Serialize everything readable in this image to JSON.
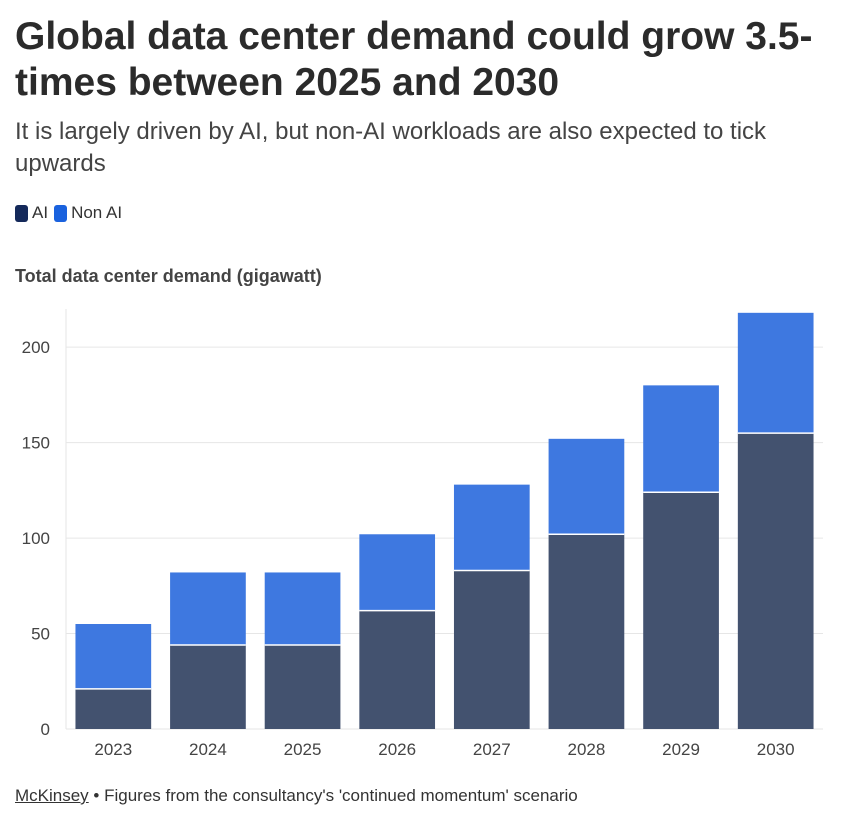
{
  "header": {
    "title": "Global data center demand could grow 3.5-times between 2025 and 2030",
    "subtitle": "It is largely driven by AI, but non-AI workloads are also expected to tick upwards"
  },
  "legend": {
    "items": [
      {
        "label": "AI",
        "color": "#14295a"
      },
      {
        "label": "Non AI",
        "color": "#1a62de"
      }
    ]
  },
  "footer": {
    "source": "McKinsey",
    "note": " • Figures from the consultancy's 'continued momentum' scenario"
  },
  "chart_data": {
    "type": "bar",
    "stacked": true,
    "title": "Global data center demand could grow 3.5-times between 2025 and 2030",
    "ylabel": "Total data center demand (gigawatt)",
    "categories": [
      "2023",
      "2024",
      "2025",
      "2026",
      "2027",
      "2028",
      "2029",
      "2030"
    ],
    "series": [
      {
        "name": "AI",
        "color": "#43526f",
        "values": [
          21,
          44,
          44,
          62,
          83,
          102,
          124,
          155
        ]
      },
      {
        "name": "Non AI",
        "color": "#3e78e0",
        "values": [
          34,
          38,
          38,
          40,
          45,
          50,
          56,
          63
        ]
      }
    ],
    "ylim": [
      0,
      220
    ],
    "yticks": [
      0,
      50,
      100,
      150,
      200
    ],
    "grid": true,
    "legend_position": "top-left"
  }
}
